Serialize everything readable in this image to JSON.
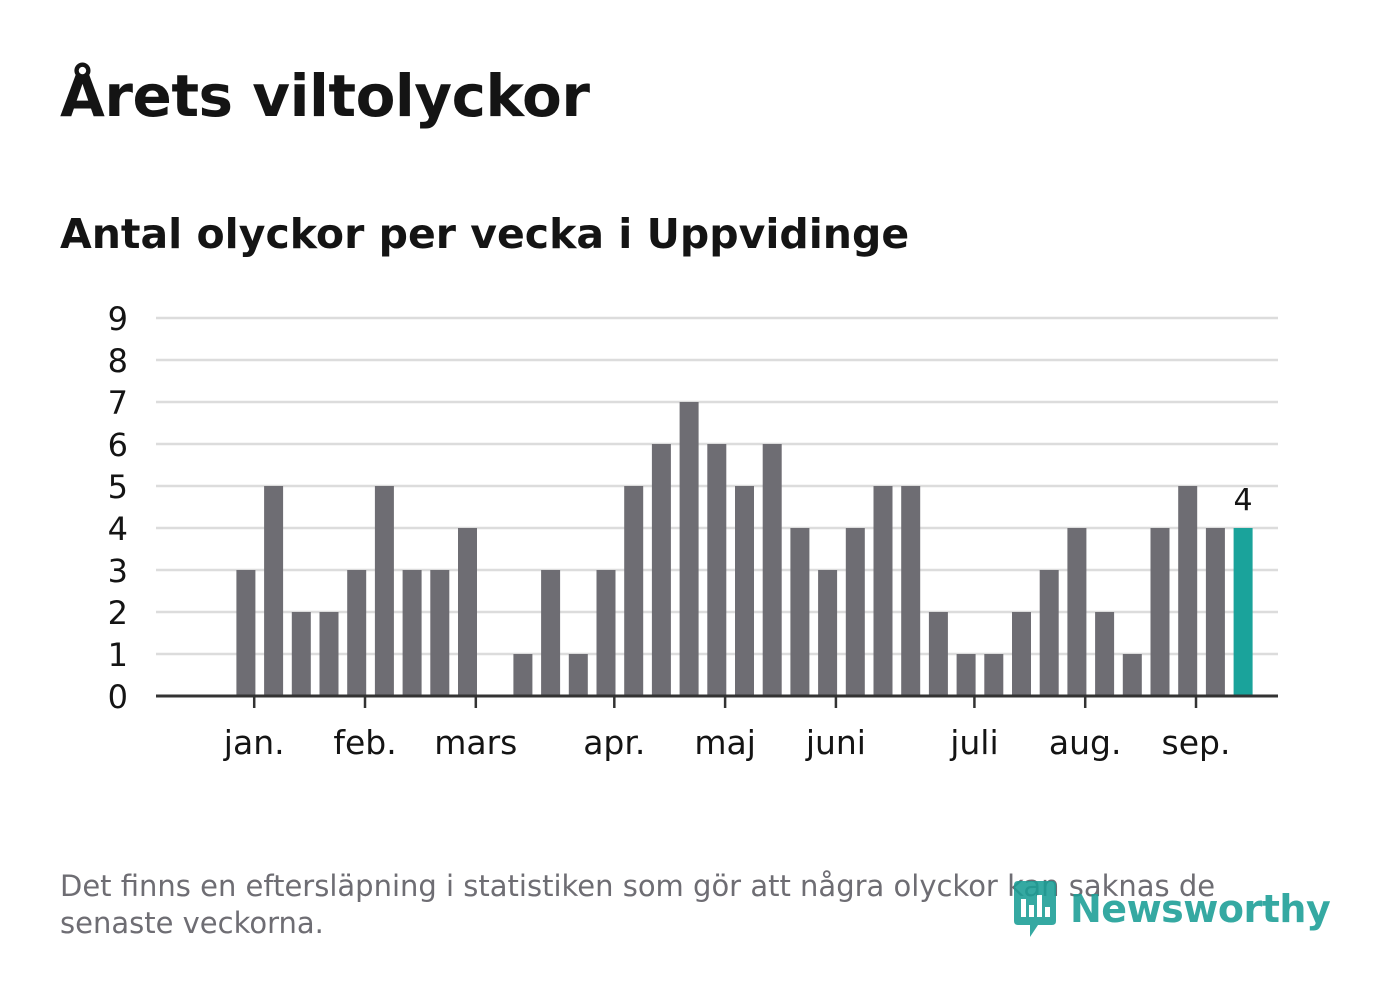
{
  "title": "Årets viltolyckor",
  "subtitle": "Antal olyckor per vecka i Uppvidinge",
  "footnote": "Det finns en eftersläpning i statistiken som gör att några olyckor kan saknas de senaste veckorna.",
  "brand": {
    "name": "Newsworthy",
    "icon": "newsworthy-logo-icon",
    "color": "#1a9e96"
  },
  "colors": {
    "bar": "#6e6d73",
    "highlight": "#1aa39b",
    "grid": "#dcdcdc",
    "axis": "#333333",
    "text": "#141414"
  },
  "chart_data": {
    "type": "bar",
    "title": "Årets viltolyckor",
    "subtitle": "Antal olyckor per vecka i Uppvidinge",
    "xlabel": "",
    "ylabel": "",
    "ylim": [
      0,
      9
    ],
    "yticks": [
      0,
      1,
      2,
      3,
      4,
      5,
      6,
      7,
      8,
      9
    ],
    "grid": true,
    "legend": "none",
    "weeks": [
      1,
      2,
      3,
      4,
      5,
      6,
      7,
      8,
      9,
      10,
      11,
      12,
      13,
      14,
      15,
      16,
      17,
      18,
      19,
      20,
      21,
      22,
      23,
      24,
      25,
      26,
      27,
      28,
      29,
      30,
      31,
      32,
      33,
      34,
      35,
      36,
      37,
      38,
      39,
      40
    ],
    "values": [
      0,
      0,
      3,
      5,
      2,
      2,
      3,
      5,
      3,
      3,
      4,
      0,
      1,
      3,
      1,
      3,
      5,
      6,
      7,
      6,
      5,
      6,
      4,
      3,
      4,
      5,
      5,
      2,
      1,
      1,
      2,
      3,
      4,
      2,
      1,
      4,
      5,
      4,
      4,
      0
    ],
    "highlight_index": 38,
    "highlight_label": "4",
    "month_ticks": [
      {
        "label": "jan.",
        "x": 3.3
      },
      {
        "label": "feb.",
        "x": 7.3
      },
      {
        "label": "mars",
        "x": 11.3
      },
      {
        "label": "apr.",
        "x": 16.3
      },
      {
        "label": "maj",
        "x": 20.3
      },
      {
        "label": "juni",
        "x": 24.3
      },
      {
        "label": "juli",
        "x": 29.3
      },
      {
        "label": "aug.",
        "x": 33.3
      },
      {
        "label": "sep.",
        "x": 37.3
      }
    ]
  }
}
